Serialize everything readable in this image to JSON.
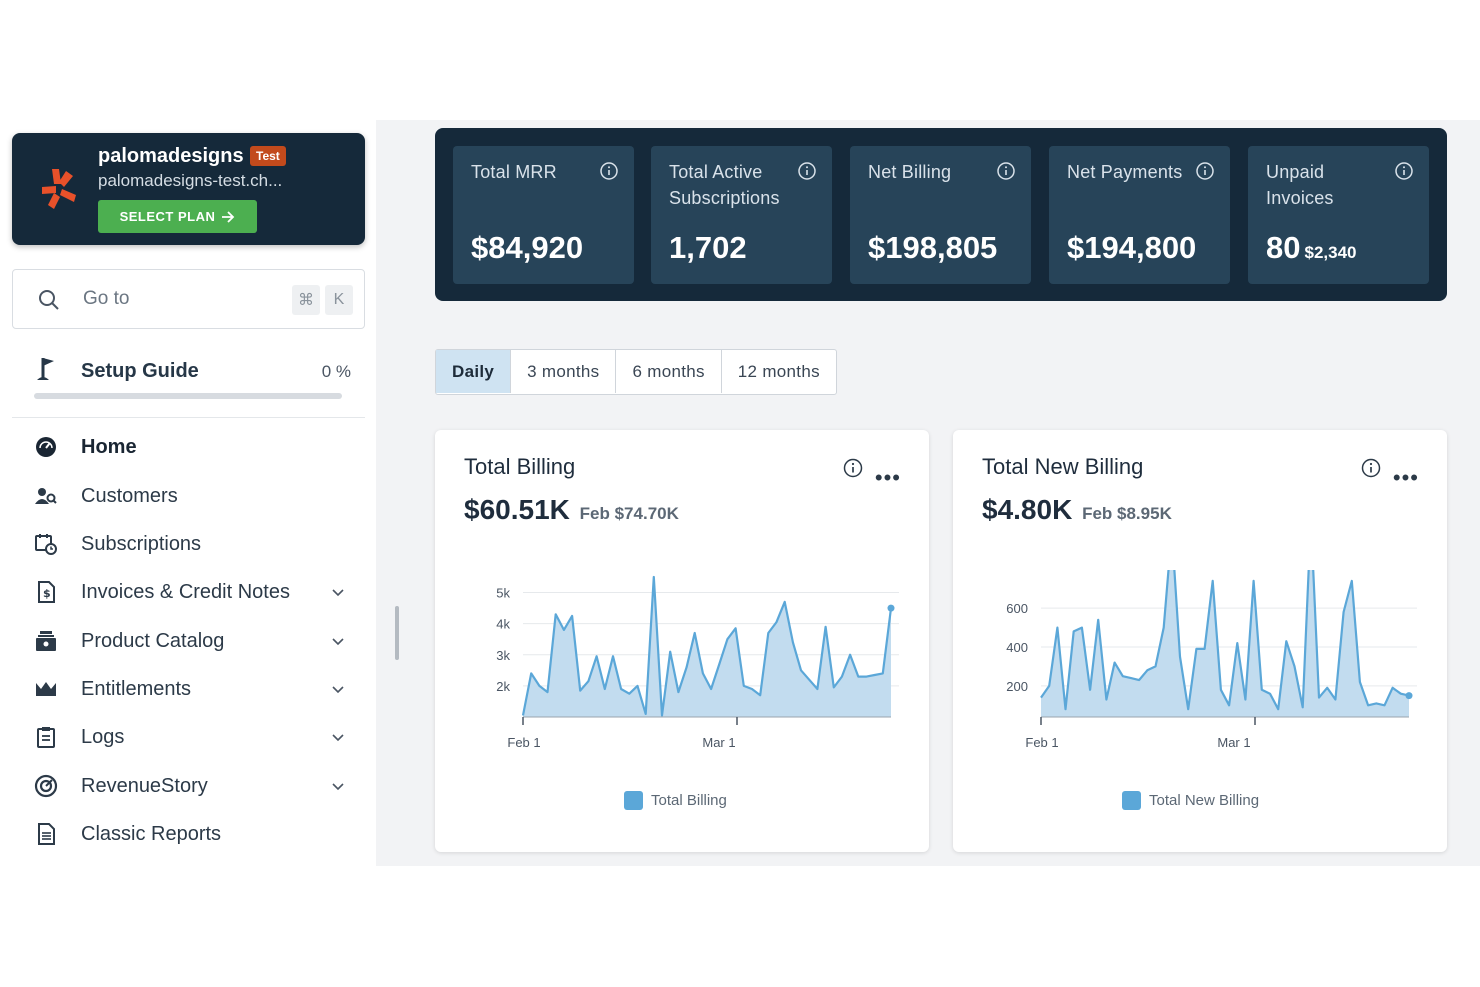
{
  "site": {
    "name": "palomadesigns",
    "badge": "Test",
    "domain": "palomadesigns-test.ch...",
    "select_plan": "SELECT PLAN",
    "logo_color": "#e8512a"
  },
  "search": {
    "placeholder": "Go to",
    "shortcut_key1": "⌘",
    "shortcut_key2": "K"
  },
  "setup": {
    "label": "Setup Guide",
    "percent": "0 %",
    "progress": 0
  },
  "nav": [
    {
      "label": "Home",
      "icon": "dashboard-icon",
      "active": true,
      "expandable": false
    },
    {
      "label": "Customers",
      "icon": "customers-icon",
      "active": false,
      "expandable": false
    },
    {
      "label": "Subscriptions",
      "icon": "subscriptions-icon",
      "active": false,
      "expandable": false
    },
    {
      "label": "Invoices & Credit Notes",
      "icon": "invoice-icon",
      "active": false,
      "expandable": true
    },
    {
      "label": "Product Catalog",
      "icon": "product-catalog-icon",
      "active": false,
      "expandable": true
    },
    {
      "label": "Entitlements",
      "icon": "crown-icon",
      "active": false,
      "expandable": true
    },
    {
      "label": "Logs",
      "icon": "clipboard-icon",
      "active": false,
      "expandable": true
    },
    {
      "label": "RevenueStory",
      "icon": "target-icon",
      "active": false,
      "expandable": true
    },
    {
      "label": "Classic Reports",
      "icon": "report-icon",
      "active": false,
      "expandable": false
    }
  ],
  "kpis": [
    {
      "label": "Total MRR",
      "value": "$84,920",
      "sub": ""
    },
    {
      "label": "Total Active Subscriptions",
      "value": "1,702",
      "sub": ""
    },
    {
      "label": "Net Billing",
      "value": "$198,805",
      "sub": ""
    },
    {
      "label": "Net Payments",
      "value": "$194,800",
      "sub": ""
    },
    {
      "label": "Unpaid Invoices",
      "value": "80",
      "sub": "$2,340"
    }
  ],
  "tabs": [
    {
      "label": "Daily",
      "active": true
    },
    {
      "label": "3 months",
      "active": false
    },
    {
      "label": "6 months",
      "active": false
    },
    {
      "label": "12 months",
      "active": false
    }
  ],
  "cards": [
    {
      "title": "Total Billing",
      "value": "$60.51K",
      "compare": "Feb $74.70K",
      "legend": "Total Billing"
    },
    {
      "title": "Total New Billing",
      "value": "$4.80K",
      "compare": "Feb $8.95K",
      "legend": "Total New Billing"
    }
  ],
  "chart_data": [
    {
      "type": "area",
      "title": "Total Billing",
      "x_ticks": [
        "Feb 1",
        "Mar 1"
      ],
      "y_ticks": [
        "2k",
        "3k",
        "4k",
        "5k"
      ],
      "ylim": [
        1000,
        5500
      ],
      "grid": true,
      "legend": "bottom",
      "color": "#5ba7d8",
      "series": [
        {
          "name": "Total Billing",
          "values": [
            1050,
            2400,
            2000,
            1800,
            4300,
            3800,
            4250,
            1850,
            2150,
            2950,
            1900,
            2950,
            1900,
            1750,
            2000,
            1100,
            5500,
            1050,
            3100,
            1800,
            2600,
            3700,
            2400,
            1900,
            2700,
            3500,
            3850,
            2000,
            1900,
            1700,
            3700,
            4050,
            4700,
            3400,
            2500,
            2200,
            1900,
            3900,
            1950,
            2300,
            3000,
            2300,
            2300,
            2350,
            2400,
            4500
          ]
        }
      ]
    },
    {
      "type": "area",
      "title": "Total New Billing",
      "x_ticks": [
        "Feb 1",
        "Mar 1"
      ],
      "y_ticks": [
        "200",
        "400",
        "600"
      ],
      "ylim": [
        40,
        760
      ],
      "grid": true,
      "legend": "bottom",
      "color": "#5ba7d8",
      "series": [
        {
          "name": "Total New Billing",
          "values": [
            140,
            200,
            500,
            80,
            480,
            500,
            180,
            540,
            130,
            320,
            250,
            240,
            230,
            280,
            300,
            500,
            1000,
            350,
            80,
            390,
            390,
            740,
            180,
            100,
            420,
            130,
            740,
            180,
            160,
            80,
            430,
            300,
            90,
            1060,
            140,
            190,
            130,
            580,
            740,
            220,
            100,
            110,
            100,
            190,
            160,
            150
          ]
        }
      ]
    }
  ]
}
